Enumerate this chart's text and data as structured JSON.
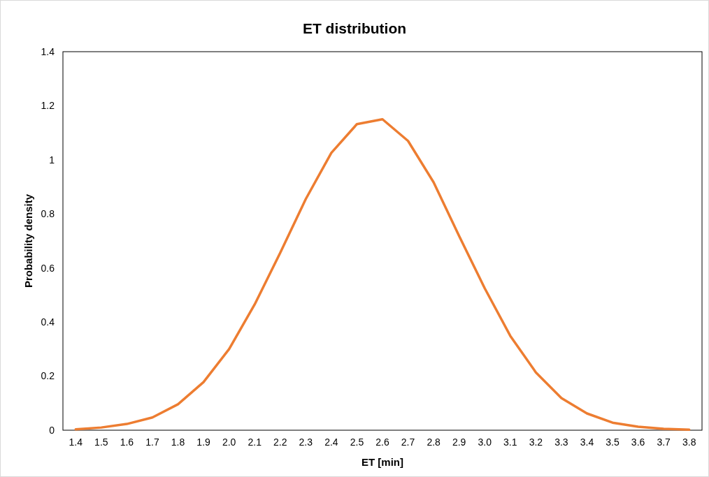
{
  "chart_data": {
    "type": "line",
    "title": "ET distribution",
    "xlabel": "ET [min]",
    "ylabel": "Probability density",
    "categories": [
      "1.4",
      "1.5",
      "1.6",
      "1.7",
      "1.8",
      "1.9",
      "2.0",
      "2.1",
      "2.2",
      "2.3",
      "2.4",
      "2.5",
      "2.6",
      "2.7",
      "2.8",
      "2.9",
      "3.0",
      "3.1",
      "3.2",
      "3.3",
      "3.4",
      "3.5",
      "3.6",
      "3.7",
      "3.8"
    ],
    "series": [
      {
        "color": "#ed7d31",
        "values": [
          0.003,
          0.01,
          0.023,
          0.047,
          0.096,
          0.178,
          0.3,
          0.465,
          0.656,
          0.855,
          1.026,
          1.132,
          1.15,
          1.07,
          0.917,
          0.718,
          0.525,
          0.349,
          0.214,
          0.119,
          0.062,
          0.028,
          0.013,
          0.005,
          0.002
        ]
      }
    ],
    "ylim": [
      0,
      1.4
    ],
    "yticks": [
      0,
      0.2,
      0.4,
      0.6,
      0.8,
      1,
      1.2,
      1.4
    ],
    "grid": false,
    "marker": "none",
    "line_style": "solid"
  }
}
